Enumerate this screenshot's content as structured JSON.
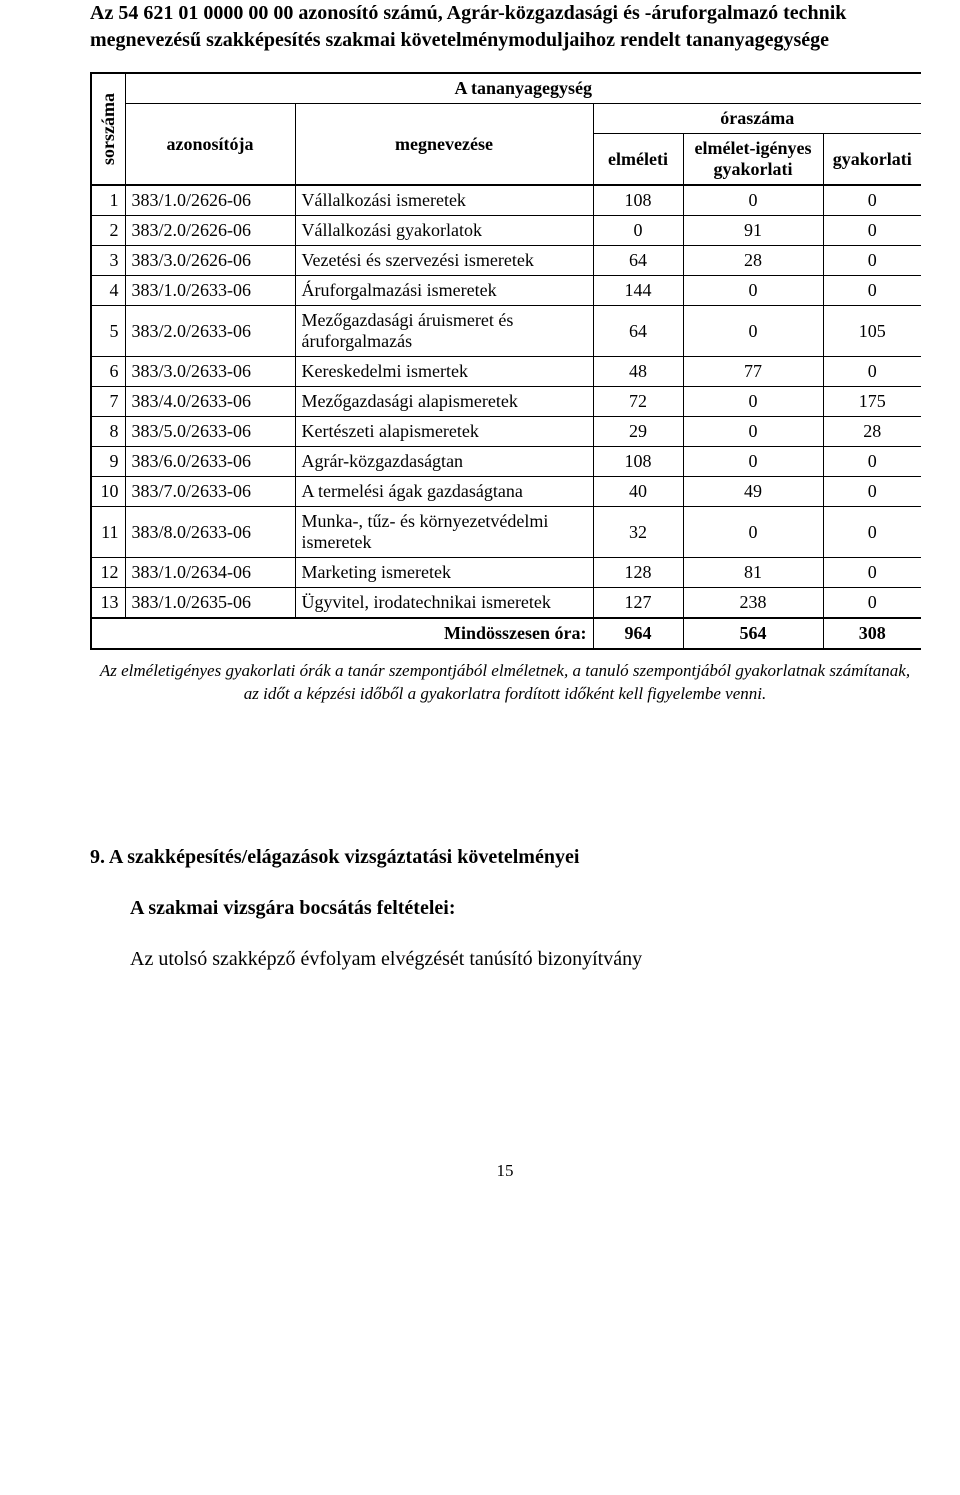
{
  "title": {
    "line1": "Az 54 621 01 0000 00 00 azonosító számú, Agrár-közgazdasági és -áruforgalmazó technik",
    "line2": "megnevezésű szakképesítés szakmai követelménymoduljaihoz rendelt tananyagegysége"
  },
  "headers": {
    "sorszama": "sorszáma",
    "azonositoja": "azonosítója",
    "megnevezese": "megnevezése",
    "tananyagegyseg": "A tananyagegység",
    "oraszama": "óraszáma",
    "elmeleti": "elméleti",
    "elmelet_igenyes": "elmélet-igényes gyakorlati",
    "gyakorlati": "gyakorlati"
  },
  "rows": [
    {
      "n": "1",
      "id": "383/1.0/2626-06",
      "name": "Vállalkozási ismeretek",
      "e": "108",
      "ei": "0",
      "g": "0"
    },
    {
      "n": "2",
      "id": "383/2.0/2626-06",
      "name": "Vállalkozási gyakorlatok",
      "e": "0",
      "ei": "91",
      "g": "0"
    },
    {
      "n": "3",
      "id": "383/3.0/2626-06",
      "name": "Vezetési és szervezési ismeretek",
      "e": "64",
      "ei": "28",
      "g": "0"
    },
    {
      "n": "4",
      "id": "383/1.0/2633-06",
      "name": "Áruforgalmazási ismeretek",
      "e": "144",
      "ei": "0",
      "g": "0"
    },
    {
      "n": "5",
      "id": "383/2.0/2633-06",
      "name": "Mezőgazdasági áruismeret és áruforgalmazás",
      "e": "64",
      "ei": "0",
      "g": "105"
    },
    {
      "n": "6",
      "id": "383/3.0/2633-06",
      "name": "Kereskedelmi ismertek",
      "e": "48",
      "ei": "77",
      "g": "0"
    },
    {
      "n": "7",
      "id": "383/4.0/2633-06",
      "name": "Mezőgazdasági alapismeretek",
      "e": "72",
      "ei": "0",
      "g": "175"
    },
    {
      "n": "8",
      "id": "383/5.0/2633-06",
      "name": "Kertészeti alapismeretek",
      "e": "29",
      "ei": "0",
      "g": "28"
    },
    {
      "n": "9",
      "id": "383/6.0/2633-06",
      "name": "Agrár-közgazdaságtan",
      "e": "108",
      "ei": "0",
      "g": "0"
    },
    {
      "n": "10",
      "id": "383/7.0/2633-06",
      "name": "A termelési ágak gazdaságtana",
      "e": "40",
      "ei": "49",
      "g": "0"
    },
    {
      "n": "11",
      "id": "383/8.0/2633-06",
      "name": "Munka-, tűz- és környezetvédelmi ismeretek",
      "e": "32",
      "ei": "0",
      "g": "0"
    },
    {
      "n": "12",
      "id": "383/1.0/2634-06",
      "name": "Marketing ismeretek",
      "e": "128",
      "ei": "81",
      "g": "0"
    },
    {
      "n": "13",
      "id": "383/1.0/2635-06",
      "name": "Ügyvitel, irodatechnikai ismeretek",
      "e": "127",
      "ei": "238",
      "g": "0"
    }
  ],
  "totals": {
    "label": "Mindösszesen óra:",
    "e": "964",
    "ei": "564",
    "g": "308"
  },
  "footnote": {
    "line1": "Az elméletigényes gyakorlati órák a tanár szempontjából elméletnek, a tanuló szempontjából gyakorlatnak számítanak,",
    "line2": "az időt a képzési időből a gyakorlatra fordított időként kell figyelembe venni."
  },
  "section9": {
    "title": "9.    A szakképesítés/elágazások vizsgáztatási követelményei",
    "sub": "A szakmai vizsgára bocsátás feltételei:",
    "body": "Az utolsó szakképző évfolyam elvégzését tanúsító bizonyítvány"
  },
  "pageNumber": "15"
}
